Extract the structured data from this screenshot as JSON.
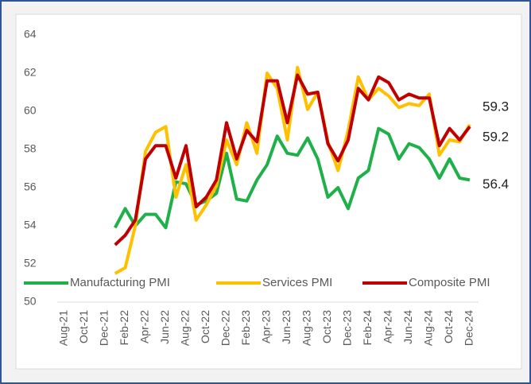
{
  "chart_data": {
    "type": "line",
    "categories": [
      "Aug-21",
      null,
      "Oct-21",
      null,
      "Dec-21",
      null,
      "Feb-22",
      null,
      "Apr-22",
      null,
      "Jun-22",
      null,
      "Aug-22",
      null,
      "Oct-22",
      null,
      "Dec-22",
      null,
      "Feb-23",
      null,
      "Apr-23",
      null,
      "Jun-23",
      null,
      "Aug-23",
      null,
      "Oct-23",
      null,
      "Dec-23",
      null,
      "Feb-24",
      null,
      "Apr-24",
      null,
      "Jun-24",
      null,
      "Aug-24",
      null,
      "Oct-24",
      null,
      "Dec-24"
    ],
    "series": [
      {
        "name": "Manufacturing PMI",
        "color": "#1fb04a",
        "values": [
          null,
          null,
          null,
          null,
          null,
          53.9,
          54.9,
          54.0,
          54.6,
          54.6,
          53.9,
          56.3,
          56.2,
          55.1,
          55.3,
          55.7,
          57.8,
          55.4,
          55.3,
          56.4,
          57.2,
          58.7,
          57.8,
          57.7,
          58.6,
          57.5,
          55.5,
          56.0,
          54.9,
          56.5,
          56.9,
          59.1,
          58.8,
          57.5,
          58.3,
          58.1,
          57.5,
          56.5,
          57.5,
          56.5,
          56.4
        ]
      },
      {
        "name": "Services PMI",
        "color": "#ffc000",
        "values": [
          null,
          null,
          null,
          null,
          null,
          51.5,
          51.8,
          54.0,
          57.9,
          58.9,
          59.2,
          55.5,
          57.2,
          54.3,
          55.1,
          56.1,
          58.5,
          57.2,
          59.4,
          57.8,
          62.0,
          61.2,
          58.5,
          62.3,
          60.1,
          61.0,
          58.4,
          56.9,
          59.0,
          61.8,
          60.6,
          61.2,
          60.8,
          60.2,
          60.4,
          60.3,
          60.9,
          57.7,
          58.5,
          58.4,
          59.3
        ]
      },
      {
        "name": "Composite PMI",
        "color": "#c00000",
        "values": [
          null,
          null,
          null,
          null,
          null,
          53.0,
          53.5,
          54.3,
          57.5,
          58.2,
          58.2,
          56.5,
          58.2,
          55.0,
          55.5,
          56.4,
          59.4,
          57.5,
          59.0,
          58.4,
          61.6,
          61.6,
          59.4,
          61.9,
          60.9,
          61.0,
          58.3,
          57.4,
          58.5,
          61.2,
          60.6,
          61.8,
          61.5,
          60.6,
          60.9,
          60.7,
          60.7,
          58.2,
          59.1,
          58.5,
          59.2
        ]
      }
    ],
    "ylim": [
      50,
      64
    ],
    "yticks": [
      50,
      52,
      54,
      56,
      58,
      60,
      62,
      64
    ],
    "grid": false,
    "legend": "bottom-left"
  }
}
